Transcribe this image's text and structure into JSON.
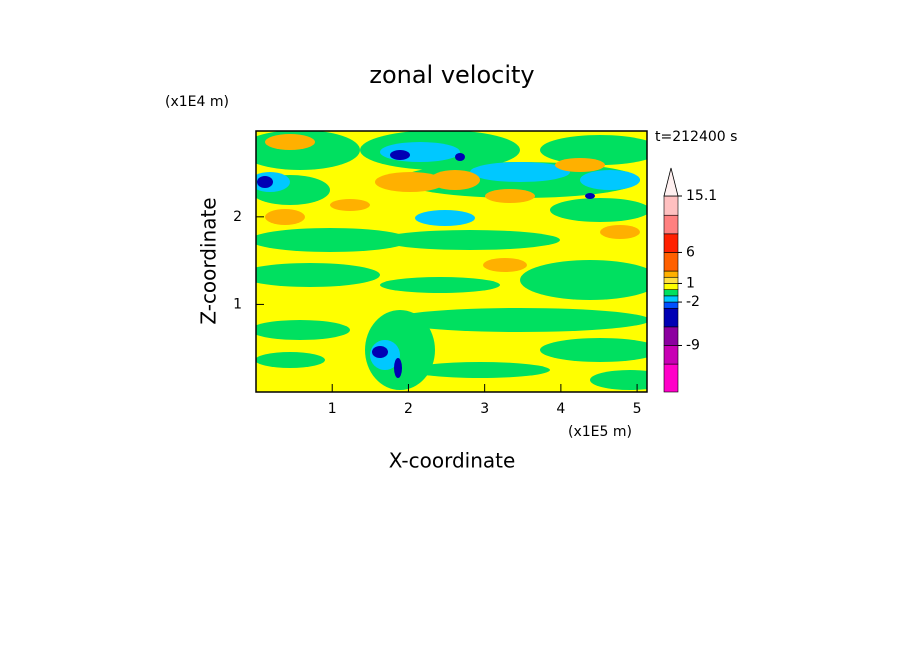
{
  "chart_data": {
    "type": "contour",
    "title": "zonal velocity",
    "xlabel": "X-coordinate",
    "ylabel": "Z-coordinate",
    "x_unit_label": "(x1E5 m)",
    "y_unit_label": "(x1E4 m)",
    "time_label": "t=212400 s",
    "xlim": [
      0,
      5.13
    ],
    "xticks": [
      1,
      2,
      3,
      4,
      5
    ],
    "ylim": [
      0,
      2.98
    ],
    "yticks": [
      1,
      2
    ],
    "colorbar": {
      "lim": [
        -16.5,
        15.1
      ],
      "ticks": [
        -9,
        -2,
        1,
        6,
        15.1
      ],
      "levels": [
        -16.5,
        -12,
        -9,
        -6,
        -3,
        -2,
        -1,
        0,
        1,
        2,
        3,
        6,
        9,
        12,
        15.1
      ],
      "colors": [
        "#ff00c8",
        "#c800b4",
        "#8c00a0",
        "#0000b4",
        "#0050ff",
        "#00c8ff",
        "#00e060",
        "#ffff00",
        "#ffe040",
        "#ffb000",
        "#ff6000",
        "#ff2000",
        "#ff8080",
        "#ffc0c0"
      ],
      "extend_color": "#fff0f0"
    }
  }
}
